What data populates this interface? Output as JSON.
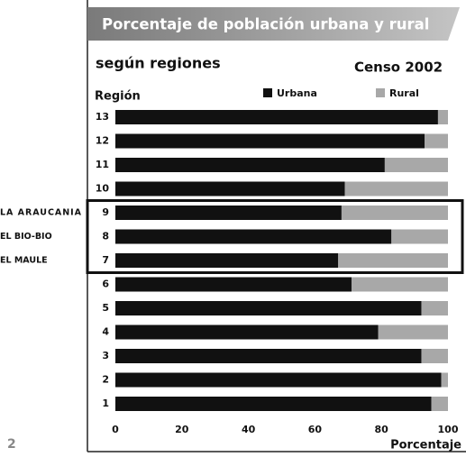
{
  "chart_data": {
    "type": "stacked-barh",
    "title": "Porcentaje de población urbana y rural",
    "subtitle": "según regiones",
    "census": "Censo 2002",
    "ylabel": "Región",
    "xlabel": "Porcentaje",
    "categories": [
      "13",
      "12",
      "11",
      "10",
      "9",
      "8",
      "7",
      "6",
      "5",
      "4",
      "3",
      "2",
      "1"
    ],
    "series": [
      {
        "name": "Urbana",
        "color": "#111111",
        "values": [
          97,
          93,
          81,
          69,
          68,
          83,
          67,
          71,
          92,
          79,
          92,
          98,
          95
        ]
      },
      {
        "name": "Rural",
        "color": "#a8a8a8",
        "values": [
          3,
          7,
          19,
          31,
          32,
          17,
          33,
          29,
          8,
          21,
          8,
          2,
          5
        ]
      }
    ],
    "xlim": [
      0,
      100
    ],
    "xticks": [
      0,
      20,
      40,
      60,
      80,
      100
    ],
    "annotations": [
      "LA ARAUCANIA",
      "EL BIO-BIO",
      "EL MAULE"
    ],
    "page_number": "2"
  }
}
